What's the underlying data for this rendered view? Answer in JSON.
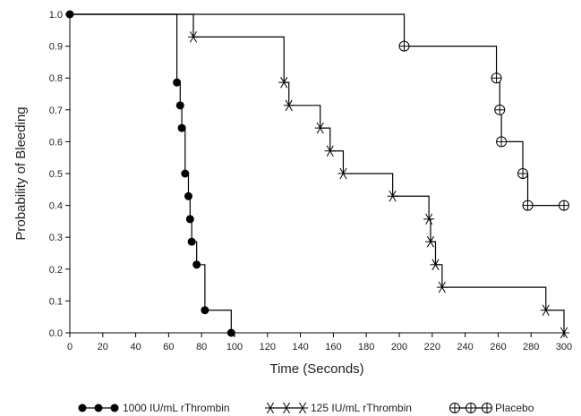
{
  "chart_data": {
    "type": "line",
    "subtype": "step",
    "title": "",
    "xlabel": "Time (Seconds)",
    "ylabel": "Probability of Bleeding",
    "xlim": [
      0,
      300
    ],
    "ylim": [
      0,
      1.0
    ],
    "x_ticks": [
      "0",
      "20",
      "40",
      "60",
      "80",
      "100",
      "120",
      "140",
      "160",
      "180",
      "200",
      "220",
      "240",
      "260",
      "280",
      "300"
    ],
    "y_ticks": [
      "0.0",
      "0.1",
      "0.2",
      "0.3",
      "0.4",
      "0.5",
      "0.6",
      "0.7",
      "0.8",
      "0.9",
      "1.0"
    ],
    "grid": false,
    "legend_position": "bottom",
    "series": [
      {
        "name": "1000 IU/mL rThrombin",
        "marker": "filled-circle",
        "color": "#000000",
        "points": [
          {
            "x": 0,
            "y": 1.0
          },
          {
            "x": 65,
            "y": 0.786
          },
          {
            "x": 67,
            "y": 0.714
          },
          {
            "x": 68,
            "y": 0.643
          },
          {
            "x": 70,
            "y": 0.5
          },
          {
            "x": 72,
            "y": 0.429
          },
          {
            "x": 73,
            "y": 0.357
          },
          {
            "x": 74,
            "y": 0.286
          },
          {
            "x": 77,
            "y": 0.214
          },
          {
            "x": 82,
            "y": 0.071
          },
          {
            "x": 98,
            "y": 0.0
          }
        ]
      },
      {
        "name": "125 IU/mL rThrombin",
        "marker": "star",
        "color": "#000000",
        "points": [
          {
            "x": 0,
            "y": 1.0
          },
          {
            "x": 75,
            "y": 0.929
          },
          {
            "x": 130,
            "y": 0.786
          },
          {
            "x": 133,
            "y": 0.714
          },
          {
            "x": 152,
            "y": 0.643
          },
          {
            "x": 158,
            "y": 0.571
          },
          {
            "x": 166,
            "y": 0.5
          },
          {
            "x": 196,
            "y": 0.429
          },
          {
            "x": 218,
            "y": 0.357
          },
          {
            "x": 219,
            "y": 0.286
          },
          {
            "x": 222,
            "y": 0.214
          },
          {
            "x": 226,
            "y": 0.143
          },
          {
            "x": 289,
            "y": 0.071
          },
          {
            "x": 300,
            "y": 0.0
          }
        ]
      },
      {
        "name": "Placebo",
        "marker": "circle-plus",
        "color": "#000000",
        "points": [
          {
            "x": 0,
            "y": 1.0
          },
          {
            "x": 203,
            "y": 0.9
          },
          {
            "x": 259,
            "y": 0.8
          },
          {
            "x": 261,
            "y": 0.7
          },
          {
            "x": 262,
            "y": 0.6
          },
          {
            "x": 275,
            "y": 0.5
          },
          {
            "x": 278,
            "y": 0.4
          },
          {
            "x": 300,
            "y": 0.4
          }
        ]
      }
    ]
  }
}
